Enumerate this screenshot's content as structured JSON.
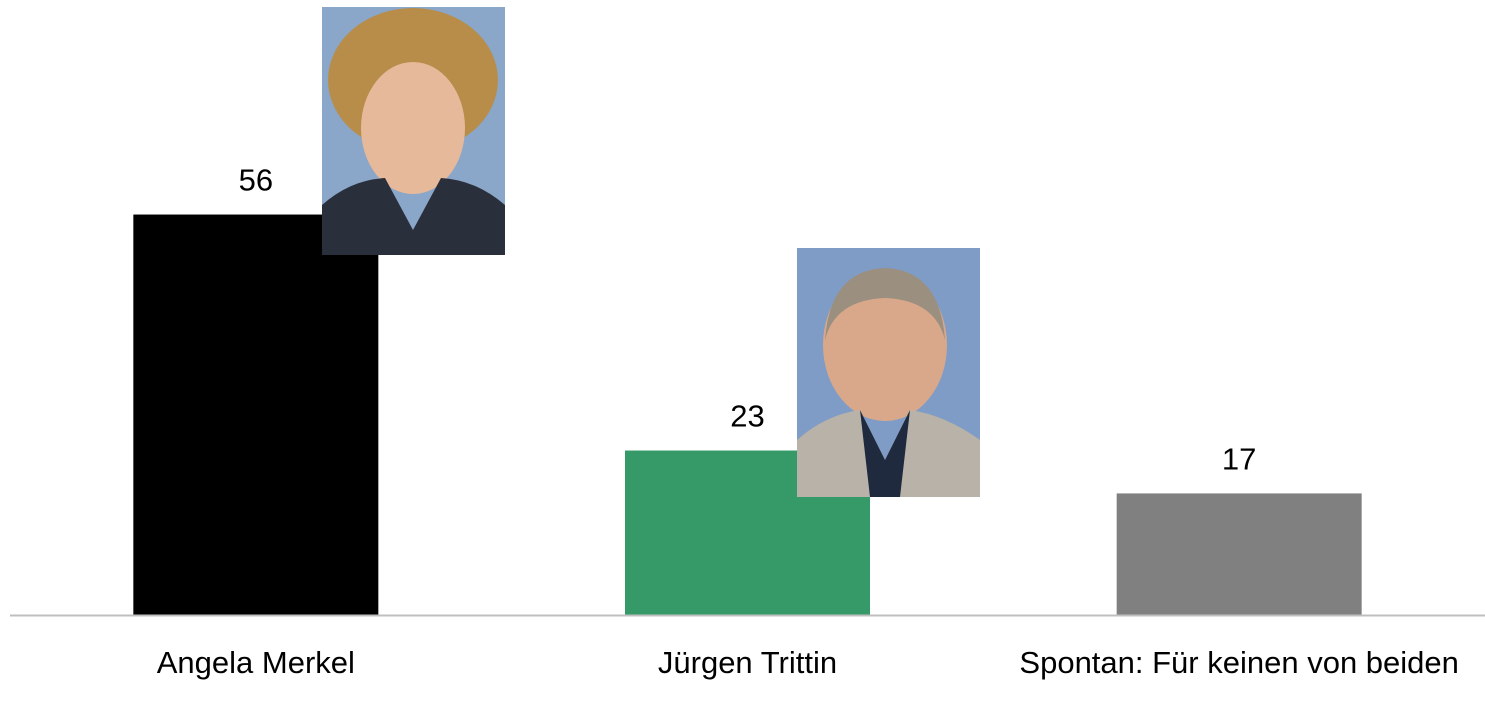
{
  "chart_data": {
    "type": "bar",
    "categories": [
      "Angela Merkel",
      "Jürgen Trittin",
      "Spontan: Für keinen von beiden"
    ],
    "values": [
      56,
      23,
      17
    ],
    "colors": [
      "#000000",
      "#359a68",
      "#808080"
    ],
    "ylim": [
      0,
      86
    ]
  }
}
